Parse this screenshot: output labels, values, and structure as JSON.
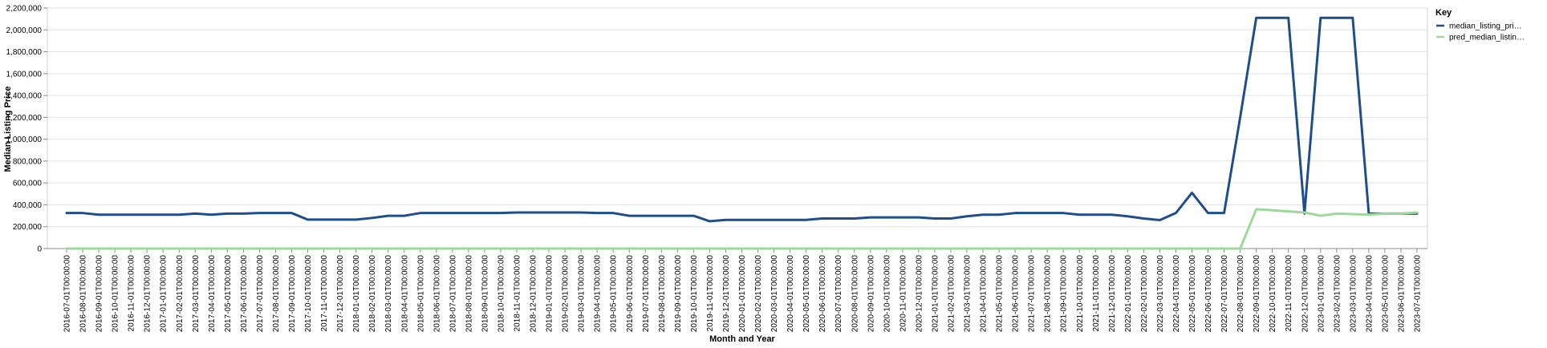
{
  "chart_data": {
    "type": "line",
    "xlabel": "Month and Year",
    "ylabel": "Median Listing Price",
    "ylim": [
      0,
      2200000
    ],
    "y_ticks": [
      "0",
      "200,000",
      "400,000",
      "600,000",
      "800,000",
      "1,000,000",
      "1,200,000",
      "1,400,000",
      "1,600,000",
      "1,800,000",
      "2,000,000",
      "2,200,000"
    ],
    "grid": true,
    "legend_title": "Key",
    "legend_position": "top-right",
    "x": [
      "2016-07-01T00:00:00",
      "2016-08-01T00:00:00",
      "2016-09-01T00:00:00",
      "2016-10-01T00:00:00",
      "2016-11-01T00:00:00",
      "2016-12-01T00:00:00",
      "2017-01-01T00:00:00",
      "2017-02-01T00:00:00",
      "2017-03-01T00:00:00",
      "2017-04-01T00:00:00",
      "2017-05-01T00:00:00",
      "2017-06-01T00:00:00",
      "2017-07-01T00:00:00",
      "2017-08-01T00:00:00",
      "2017-09-01T00:00:00",
      "2017-10-01T00:00:00",
      "2017-11-01T00:00:00",
      "2017-12-01T00:00:00",
      "2018-01-01T00:00:00",
      "2018-02-01T00:00:00",
      "2018-03-01T00:00:00",
      "2018-04-01T00:00:00",
      "2018-05-01T00:00:00",
      "2018-06-01T00:00:00",
      "2018-07-01T00:00:00",
      "2018-08-01T00:00:00",
      "2018-09-01T00:00:00",
      "2018-10-01T00:00:00",
      "2018-11-01T00:00:00",
      "2018-12-01T00:00:00",
      "2019-01-01T00:00:00",
      "2019-02-01T00:00:00",
      "2019-03-01T00:00:00",
      "2019-04-01T00:00:00",
      "2019-05-01T00:00:00",
      "2019-06-01T00:00:00",
      "2019-07-01T00:00:00",
      "2019-08-01T00:00:00",
      "2019-09-01T00:00:00",
      "2019-10-01T00:00:00",
      "2019-11-01T00:00:00",
      "2019-12-01T00:00:00",
      "2020-01-01T00:00:00",
      "2020-02-01T00:00:00",
      "2020-03-01T00:00:00",
      "2020-04-01T00:00:00",
      "2020-05-01T00:00:00",
      "2020-06-01T00:00:00",
      "2020-07-01T00:00:00",
      "2020-08-01T00:00:00",
      "2020-09-01T00:00:00",
      "2020-10-01T00:00:00",
      "2020-11-01T00:00:00",
      "2020-12-01T00:00:00",
      "2021-01-01T00:00:00",
      "2021-02-01T00:00:00",
      "2021-03-01T00:00:00",
      "2021-04-01T00:00:00",
      "2021-05-01T00:00:00",
      "2021-06-01T00:00:00",
      "2021-07-01T00:00:00",
      "2021-08-01T00:00:00",
      "2021-09-01T00:00:00",
      "2021-10-01T00:00:00",
      "2021-11-01T00:00:00",
      "2021-12-01T00:00:00",
      "2022-01-01T00:00:00",
      "2022-02-01T00:00:00",
      "2022-03-01T00:00:00",
      "2022-04-01T00:00:00",
      "2022-05-01T00:00:00",
      "2022-06-01T00:00:00",
      "2022-07-01T00:00:00",
      "2022-08-01T00:00:00",
      "2022-09-01T00:00:00",
      "2022-10-01T00:00:00",
      "2022-11-01T00:00:00",
      "2022-12-01T00:00:00",
      "2023-01-01T00:00:00",
      "2023-02-01T00:00:00",
      "2023-03-01T00:00:00",
      "2023-04-01T00:00:00",
      "2023-05-01T00:00:00",
      "2023-06-01T00:00:00",
      "2023-07-01T00:00:00"
    ],
    "series": [
      {
        "name": "median_listing_pri…",
        "color": "#1f4e8c",
        "values": [
          325000,
          325000,
          310000,
          310000,
          310000,
          310000,
          310000,
          310000,
          320000,
          310000,
          320000,
          320000,
          325000,
          325000,
          325000,
          265000,
          265000,
          265000,
          265000,
          280000,
          300000,
          300000,
          325000,
          325000,
          325000,
          325000,
          325000,
          325000,
          330000,
          330000,
          330000,
          330000,
          330000,
          325000,
          325000,
          300000,
          300000,
          300000,
          300000,
          300000,
          250000,
          262000,
          262000,
          262000,
          262000,
          262000,
          262000,
          275000,
          275000,
          275000,
          285000,
          285000,
          285000,
          285000,
          275000,
          275000,
          295000,
          310000,
          310000,
          325000,
          325000,
          325000,
          325000,
          310000,
          310000,
          310000,
          295000,
          275000,
          260000,
          325000,
          510000,
          325000,
          325000,
          1200000,
          2110000,
          2110000,
          2110000,
          320000,
          2110000,
          2110000,
          2110000,
          320000,
          320000,
          320000,
          320000
        ]
      },
      {
        "name": "pred_median_listin…",
        "color": "#9ed89a",
        "values": [
          0,
          0,
          0,
          0,
          0,
          0,
          0,
          0,
          0,
          0,
          0,
          0,
          0,
          0,
          0,
          0,
          0,
          0,
          0,
          0,
          0,
          0,
          0,
          0,
          0,
          0,
          0,
          0,
          0,
          0,
          0,
          0,
          0,
          0,
          0,
          0,
          0,
          0,
          0,
          0,
          0,
          0,
          0,
          0,
          0,
          0,
          0,
          0,
          0,
          0,
          0,
          0,
          0,
          0,
          0,
          0,
          0,
          0,
          0,
          0,
          0,
          0,
          0,
          0,
          0,
          0,
          0,
          0,
          0,
          0,
          0,
          0,
          0,
          0,
          360000,
          350000,
          340000,
          330000,
          300000,
          320000,
          315000,
          310000,
          320000,
          320000,
          330000
        ]
      }
    ]
  }
}
